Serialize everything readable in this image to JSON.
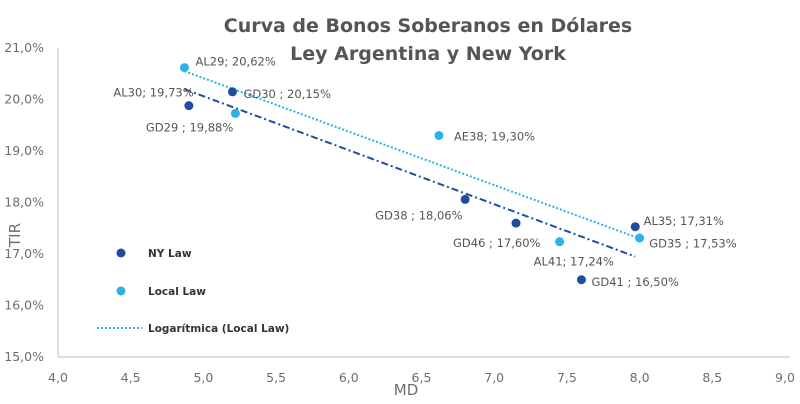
{
  "chart_data": {
    "type": "scatter",
    "title": [
      "Curva de Bonos Soberanos en Dólares",
      "Ley Argentina y New York"
    ],
    "xlabel": "MD",
    "ylabel": "TIR",
    "xlim": [
      4.0,
      9.0
    ],
    "ylim": [
      15.0,
      21.0
    ],
    "xticks": [
      "4,0",
      "4,5",
      "5,0",
      "5,5",
      "6,0",
      "6,5",
      "7,0",
      "7,5",
      "8,0",
      "8,5",
      "9,0"
    ],
    "yticks": [
      "15,0%",
      "16,0%",
      "17,0%",
      "18,0%",
      "19,0%",
      "20,0%",
      "21,0%"
    ],
    "grid": false,
    "legend_position": "left",
    "series": [
      {
        "name": "NY Law",
        "color": "#1f4e9e",
        "points": [
          {
            "x": 4.9,
            "y": 19.88,
            "label": "GD29 ; 19,88%"
          },
          {
            "x": 5.2,
            "y": 20.15,
            "label": "GD30 ; 20,15%"
          },
          {
            "x": 6.8,
            "y": 18.06,
            "label": "GD38 ; 18,06%"
          },
          {
            "x": 7.15,
            "y": 17.6,
            "label": "GD46 ; 17,60%"
          },
          {
            "x": 7.6,
            "y": 16.5,
            "label": "GD41 ; 16,50%"
          },
          {
            "x": 7.97,
            "y": 17.53,
            "label": "GD35 ; 17,53%"
          }
        ]
      },
      {
        "name": "Local Law",
        "color": "#29b3e8",
        "points": [
          {
            "x": 4.87,
            "y": 20.62,
            "label": "AL29; 20,62%"
          },
          {
            "x": 5.22,
            "y": 19.73,
            "label": "AL30; 19,73%"
          },
          {
            "x": 6.62,
            "y": 19.3,
            "label": "AE38; 19,30%"
          },
          {
            "x": 7.45,
            "y": 17.24,
            "label": "AL41; 17,24%"
          },
          {
            "x": 8.0,
            "y": 17.31,
            "label": "AL35; 17,31%"
          }
        ]
      }
    ],
    "trendlines": [
      {
        "name": "Logarítmica (Local Law)",
        "color": "#29b3e8",
        "style": "dotted",
        "from": [
          4.87,
          20.55
        ],
        "to": [
          8.0,
          17.3
        ],
        "in_legend": true
      },
      {
        "color": "#1f4e9e",
        "style": "dash-dot",
        "from": [
          4.87,
          20.2
        ],
        "to": [
          7.97,
          16.95
        ],
        "in_legend": false
      }
    ]
  }
}
